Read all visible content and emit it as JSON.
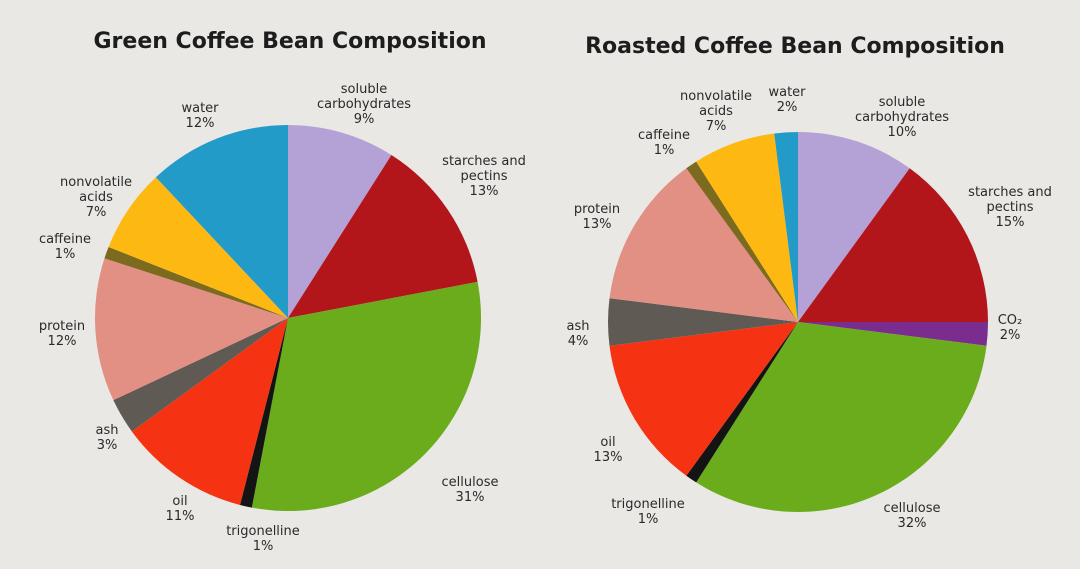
{
  "chart_data": [
    {
      "type": "pie",
      "title": "Green Coffee Bean Composition",
      "slices": [
        {
          "label": [
            "soluble",
            "carbohydrates",
            "9%"
          ],
          "name": "soluble carbohydrates",
          "value": 9,
          "color": "#b4a2d6"
        },
        {
          "label": [
            "starches and",
            "pectins",
            "13%"
          ],
          "name": "starches and pectins",
          "value": 13,
          "color": "#b2161b"
        },
        {
          "label": [
            "cellulose",
            "31%"
          ],
          "name": "cellulose",
          "value": 31,
          "color": "#6aac1c"
        },
        {
          "label": [
            "trigonelline",
            "1%"
          ],
          "name": "trigonelline",
          "value": 1,
          "color": "#141414"
        },
        {
          "label": [
            "oil",
            "11%"
          ],
          "name": "oil",
          "value": 11,
          "color": "#f53312"
        },
        {
          "label": [
            "ash",
            "3%"
          ],
          "name": "ash",
          "value": 3,
          "color": "#5f5a54"
        },
        {
          "label": [
            "protein",
            "12%"
          ],
          "name": "protein",
          "value": 12,
          "color": "#e28f84"
        },
        {
          "label": [
            "caffeine",
            "1%"
          ],
          "name": "caffeine",
          "value": 1,
          "color": "#7c6a1e"
        },
        {
          "label": [
            "nonvolatile",
            "acids",
            "7%"
          ],
          "name": "nonvolatile acids",
          "value": 7,
          "color": "#fdb812"
        },
        {
          "label": [
            "water",
            "12%"
          ],
          "name": "water",
          "value": 12,
          "color": "#239bc9"
        }
      ]
    },
    {
      "type": "pie",
      "title": "Roasted Coffee Bean Composition",
      "slices": [
        {
          "label": [
            "soluble",
            "carbohydrates",
            "10%"
          ],
          "name": "soluble carbohydrates",
          "value": 10,
          "color": "#b4a2d6"
        },
        {
          "label": [
            "starches and",
            "pectins",
            "15%"
          ],
          "name": "starches and pectins",
          "value": 15,
          "color": "#b2161b"
        },
        {
          "label": [
            "CO₂",
            "2%"
          ],
          "name": "CO2",
          "value": 2,
          "color": "#7a2d8e"
        },
        {
          "label": [
            "cellulose",
            "32%"
          ],
          "name": "cellulose",
          "value": 32,
          "color": "#6aac1c"
        },
        {
          "label": [
            "trigonelline",
            "1%"
          ],
          "name": "trigonelline",
          "value": 1,
          "color": "#141414"
        },
        {
          "label": [
            "oil",
            "13%"
          ],
          "name": "oil",
          "value": 13,
          "color": "#f53312"
        },
        {
          "label": [
            "ash",
            "4%"
          ],
          "name": "ash",
          "value": 4,
          "color": "#5f5a54"
        },
        {
          "label": [
            "protein",
            "13%"
          ],
          "name": "protein",
          "value": 13,
          "color": "#e28f84"
        },
        {
          "label": [
            "caffeine",
            "1%"
          ],
          "name": "caffeine",
          "value": 1,
          "color": "#7c6a1e"
        },
        {
          "label": [
            "nonvolatile",
            "acids",
            "7%"
          ],
          "name": "nonvolatile acids",
          "value": 7,
          "color": "#fdb812"
        },
        {
          "label": [
            "water",
            "2%"
          ],
          "name": "water",
          "value": 2,
          "color": "#239bc9"
        }
      ]
    }
  ]
}
